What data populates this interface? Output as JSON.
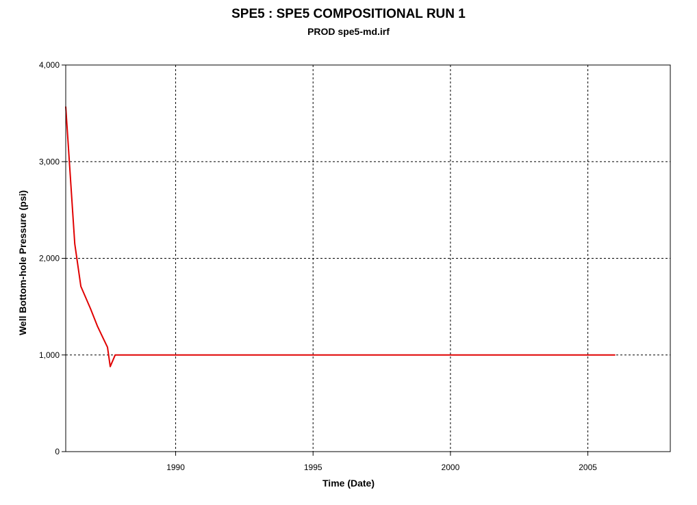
{
  "chart_data": {
    "type": "line",
    "title": "SPE5 :  SPE5 COMPOSITIONAL RUN 1",
    "subtitle": "PROD spe5-md.irf",
    "xlabel": "Time (Date)",
    "ylabel": "Well Bottom-hole Pressure (psi)",
    "xlim": [
      1986.0,
      2008.0
    ],
    "ylim": [
      0,
      4000
    ],
    "x_ticks": [
      1990,
      1995,
      2000,
      2005
    ],
    "x_tick_labels": [
      "1990",
      "1995",
      "2000",
      "2005"
    ],
    "y_ticks": [
      0,
      1000,
      2000,
      3000,
      4000
    ],
    "y_tick_labels": [
      "0",
      "1,000",
      "2,000",
      "3,000",
      "4,000"
    ],
    "grid": true,
    "series": [
      {
        "color": "#e00000",
        "x": [
          1986.0,
          1986.33,
          1986.55,
          1986.9,
          1987.15,
          1987.35,
          1987.52,
          1987.62,
          1987.8,
          1990.0,
          1995.0,
          2000.0,
          2006.0
        ],
        "y": [
          3570,
          2150,
          1710,
          1480,
          1300,
          1180,
          1080,
          880,
          1000,
          1000,
          1000,
          1000,
          1000
        ]
      }
    ]
  }
}
